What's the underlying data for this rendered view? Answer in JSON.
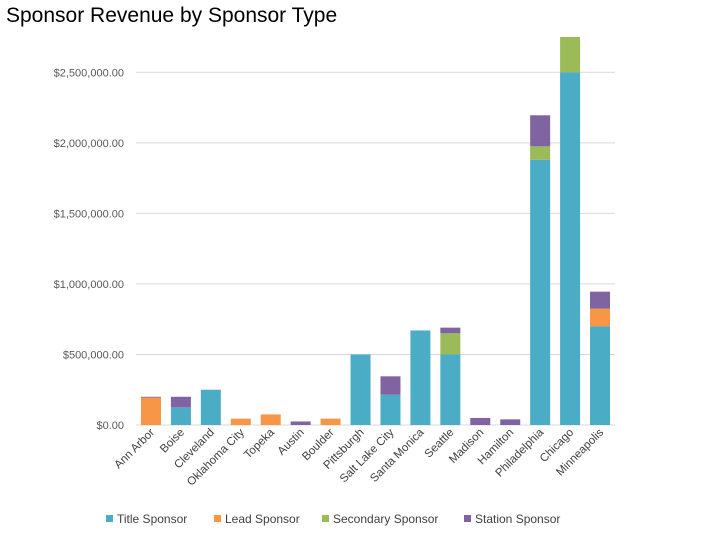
{
  "chart_data": {
    "type": "bar",
    "stacked": true,
    "title": "Sponsor Revenue by Sponsor Type",
    "xlabel": "",
    "ylabel": "",
    "ylim": [
      0,
      2750000
    ],
    "yticks": [
      0,
      500000,
      1000000,
      1500000,
      2000000,
      2500000
    ],
    "ytick_labels": [
      "$0.00",
      "$500,000.00",
      "$1,000,000.00",
      "$1,500,000.00",
      "$2,000,000.00",
      "$2,500,000.00"
    ],
    "grid": true,
    "legend_position": "bottom",
    "categories": [
      "Ann Arbor",
      "Boise",
      "Cleveland",
      "Oklahoma City",
      "Topeka",
      "Austin",
      "Boulder",
      "Pittsburgh",
      "Salt Lake City",
      "Santa Monica",
      "Seattle",
      "Madison",
      "Hamilton",
      "Philadelphia",
      "Chicago",
      "Minneapolis"
    ],
    "series": [
      {
        "name": "Title Sponsor",
        "color": "#4bacc6",
        "values": [
          0,
          125000,
          250000,
          0,
          0,
          0,
          0,
          500000,
          215000,
          670000,
          500000,
          0,
          0,
          1880000,
          2500000,
          700000
        ]
      },
      {
        "name": "Lead Sponsor",
        "color": "#f79646",
        "values": [
          195000,
          0,
          0,
          45000,
          75000,
          0,
          45000,
          0,
          0,
          0,
          0,
          0,
          0,
          0,
          0,
          125000
        ]
      },
      {
        "name": "Secondary Sponsor",
        "color": "#9bbb59",
        "values": [
          0,
          0,
          0,
          0,
          0,
          0,
          0,
          0,
          0,
          0,
          150000,
          0,
          0,
          95000,
          250000,
          0
        ]
      },
      {
        "name": "Station Sponsor",
        "color": "#8064a2",
        "values": [
          5000,
          75000,
          0,
          0,
          0,
          25000,
          0,
          0,
          130000,
          0,
          40000,
          50000,
          40000,
          220000,
          0,
          120000
        ]
      }
    ]
  }
}
